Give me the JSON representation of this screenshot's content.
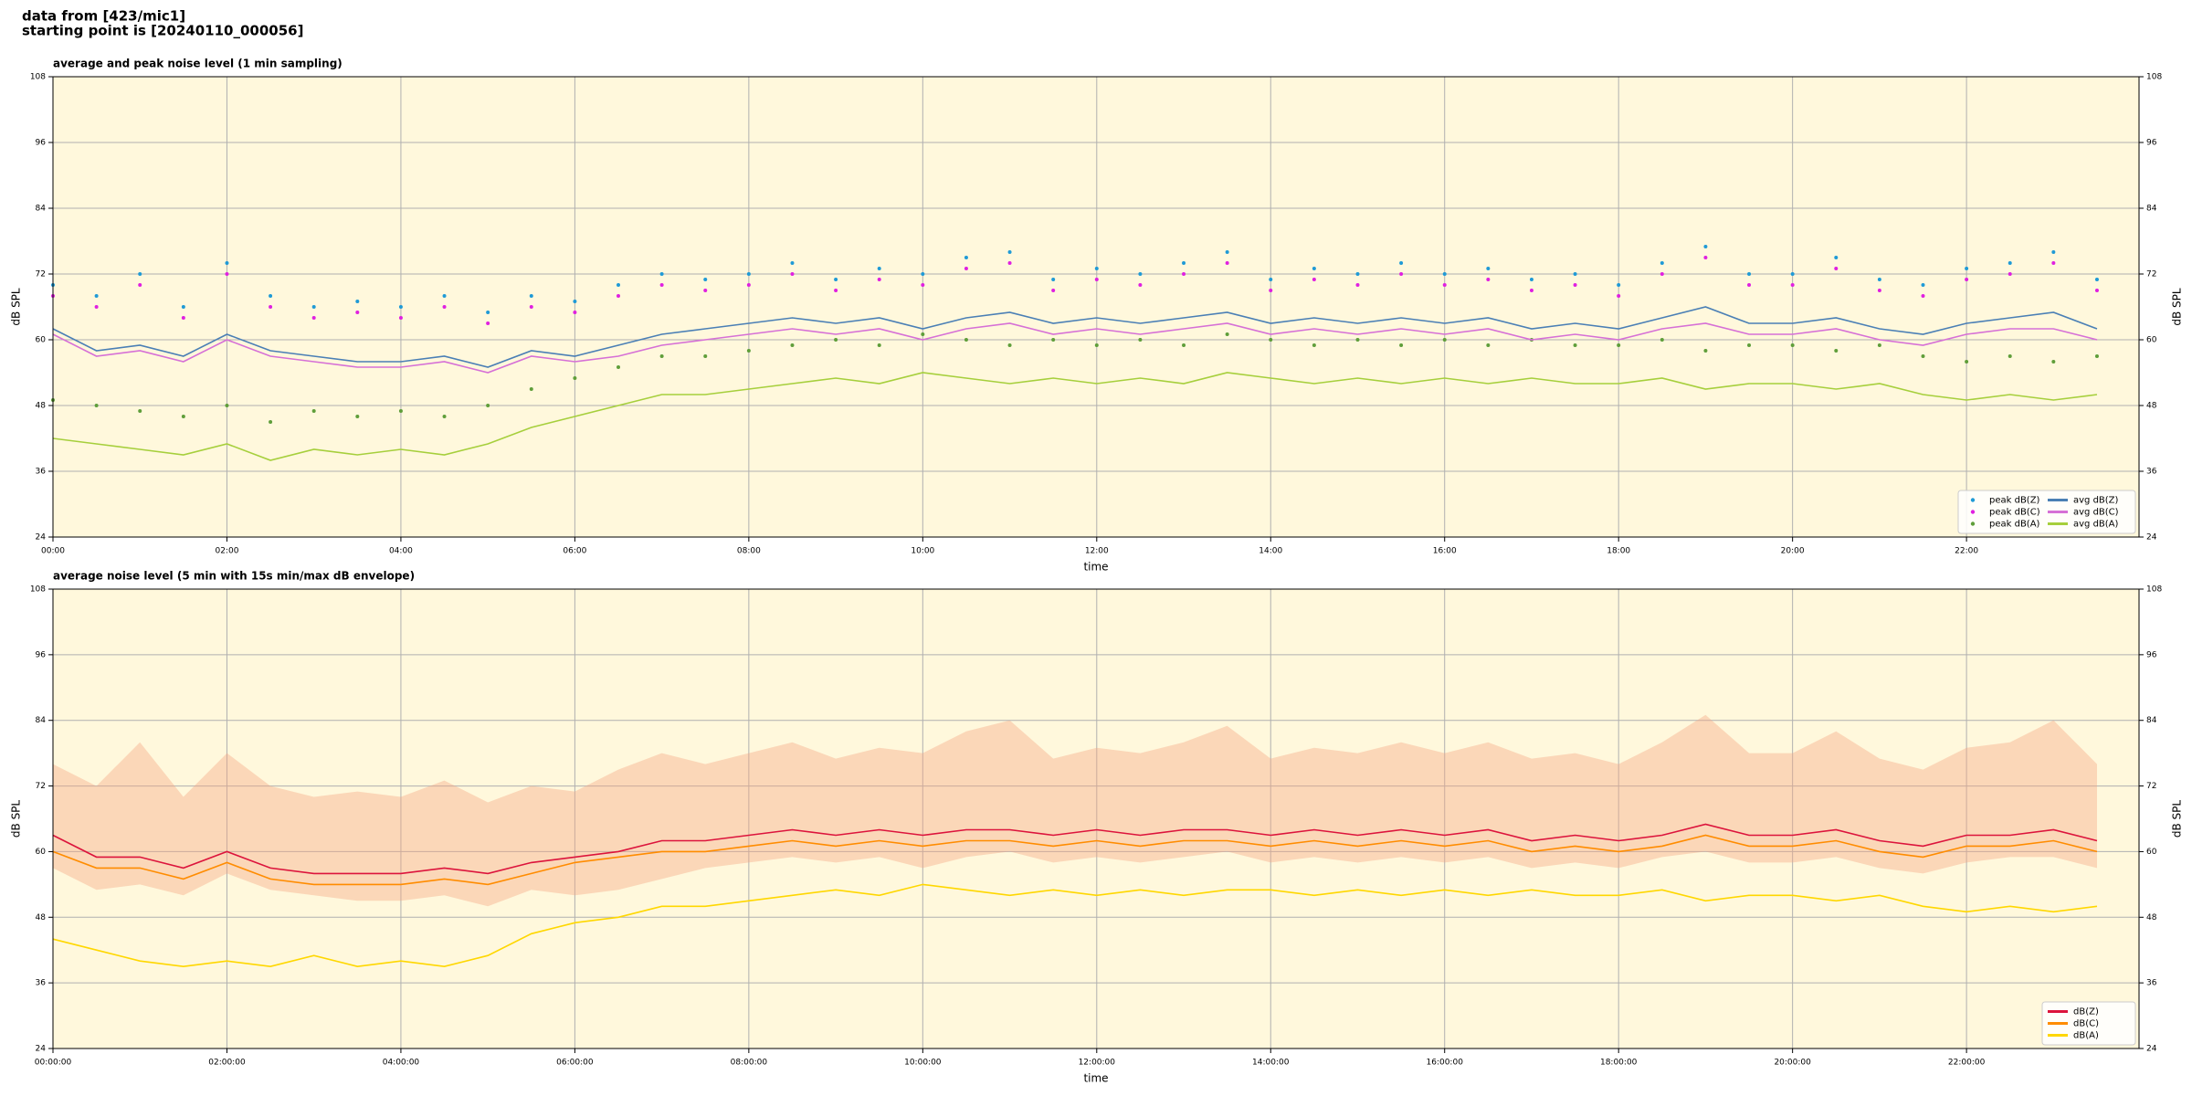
{
  "header": {
    "lines": [
      "data from [423/mic1]",
      "starting point is [20240110_000056]"
    ]
  },
  "chart_data": [
    {
      "type": "line",
      "title": "average and peak noise level (1 min sampling)",
      "xlabel": "time",
      "ylabel": "dB SPL",
      "y2label": "dB SPL",
      "x": [
        "00:00",
        "00:30",
        "01:00",
        "01:30",
        "02:00",
        "02:30",
        "03:00",
        "03:30",
        "04:00",
        "04:30",
        "05:00",
        "05:30",
        "06:00",
        "06:30",
        "07:00",
        "07:30",
        "08:00",
        "08:30",
        "09:00",
        "09:30",
        "10:00",
        "10:30",
        "11:00",
        "11:30",
        "12:00",
        "12:30",
        "13:00",
        "13:30",
        "14:00",
        "14:30",
        "15:00",
        "15:30",
        "16:00",
        "16:30",
        "17:00",
        "17:30",
        "18:00",
        "18:30",
        "19:00",
        "19:30",
        "20:00",
        "20:30",
        "21:00",
        "21:30",
        "22:00",
        "22:30",
        "23:00",
        "23:30"
      ],
      "xlim": [
        "00:00",
        "23:59"
      ],
      "xticks": [
        "00:00",
        "02:00",
        "04:00",
        "06:00",
        "08:00",
        "10:00",
        "12:00",
        "14:00",
        "16:00",
        "18:00",
        "20:00",
        "22:00"
      ],
      "ylim": [
        24,
        108
      ],
      "yticks": [
        24,
        36,
        48,
        60,
        72,
        84,
        96,
        108
      ],
      "grid": true,
      "legend": "lower right",
      "legend_columns": 2,
      "background": "#fff8dc",
      "series": [
        {
          "name": "peak dB(Z)",
          "marker": "dot",
          "color": "#1f9ad6",
          "values": [
            70,
            68,
            72,
            66,
            74,
            68,
            66,
            67,
            66,
            68,
            65,
            68,
            67,
            70,
            72,
            71,
            72,
            74,
            71,
            73,
            72,
            75,
            76,
            71,
            73,
            72,
            74,
            76,
            71,
            73,
            72,
            74,
            72,
            73,
            71,
            72,
            70,
            74,
            77,
            72,
            72,
            75,
            71,
            70,
            73,
            74,
            76,
            71
          ]
        },
        {
          "name": "peak dB(C)",
          "marker": "dot",
          "color": "#e020e0",
          "values": [
            68,
            66,
            70,
            64,
            72,
            66,
            64,
            65,
            64,
            66,
            63,
            66,
            65,
            68,
            70,
            69,
            70,
            72,
            69,
            71,
            70,
            73,
            74,
            69,
            71,
            70,
            72,
            74,
            69,
            71,
            70,
            72,
            70,
            71,
            69,
            70,
            68,
            72,
            75,
            70,
            70,
            73,
            69,
            68,
            71,
            72,
            74,
            69
          ]
        },
        {
          "name": "peak dB(A)",
          "marker": "dot",
          "color": "#5f9e3a",
          "values": [
            49,
            48,
            47,
            46,
            48,
            45,
            47,
            46,
            47,
            46,
            48,
            51,
            53,
            55,
            57,
            57,
            58,
            59,
            60,
            59,
            61,
            60,
            59,
            60,
            59,
            60,
            59,
            61,
            60,
            59,
            60,
            59,
            60,
            59,
            60,
            59,
            59,
            60,
            58,
            59,
            59,
            58,
            59,
            57,
            56,
            57,
            56,
            57
          ]
        },
        {
          "name": "avg dB(Z)",
          "marker": "line",
          "color": "#4a7fb5",
          "values": [
            62,
            58,
            59,
            57,
            61,
            58,
            57,
            56,
            56,
            57,
            55,
            58,
            57,
            59,
            61,
            62,
            63,
            64,
            63,
            64,
            62,
            64,
            65,
            63,
            64,
            63,
            64,
            65,
            63,
            64,
            63,
            64,
            63,
            64,
            62,
            63,
            62,
            64,
            66,
            63,
            63,
            64,
            62,
            61,
            63,
            64,
            65,
            62
          ]
        },
        {
          "name": "avg dB(C)",
          "marker": "line",
          "color": "#d670d6",
          "values": [
            61,
            57,
            58,
            56,
            60,
            57,
            56,
            55,
            55,
            56,
            54,
            57,
            56,
            57,
            59,
            60,
            61,
            62,
            61,
            62,
            60,
            62,
            63,
            61,
            62,
            61,
            62,
            63,
            61,
            62,
            61,
            62,
            61,
            62,
            60,
            61,
            60,
            62,
            63,
            61,
            61,
            62,
            60,
            59,
            61,
            62,
            62,
            60
          ]
        },
        {
          "name": "avg dB(A)",
          "marker": "line",
          "color": "#a6cf3c",
          "values": [
            42,
            41,
            40,
            39,
            41,
            38,
            40,
            39,
            40,
            39,
            41,
            44,
            46,
            48,
            50,
            50,
            51,
            52,
            53,
            52,
            54,
            53,
            52,
            53,
            52,
            53,
            52,
            54,
            53,
            52,
            53,
            52,
            53,
            52,
            53,
            52,
            52,
            53,
            51,
            52,
            52,
            51,
            52,
            50,
            49,
            50,
            49,
            50
          ]
        }
      ]
    },
    {
      "type": "line",
      "title": "average noise level (5 min with 15s min/max dB envelope)",
      "xlabel": "time",
      "ylabel": "dB SPL",
      "y2label": "dB SPL",
      "x": [
        "00:00:00",
        "00:30:00",
        "01:00:00",
        "01:30:00",
        "02:00:00",
        "02:30:00",
        "03:00:00",
        "03:30:00",
        "04:00:00",
        "04:30:00",
        "05:00:00",
        "05:30:00",
        "06:00:00",
        "06:30:00",
        "07:00:00",
        "07:30:00",
        "08:00:00",
        "08:30:00",
        "09:00:00",
        "09:30:00",
        "10:00:00",
        "10:30:00",
        "11:00:00",
        "11:30:00",
        "12:00:00",
        "12:30:00",
        "13:00:00",
        "13:30:00",
        "14:00:00",
        "14:30:00",
        "15:00:00",
        "15:30:00",
        "16:00:00",
        "16:30:00",
        "17:00:00",
        "17:30:00",
        "18:00:00",
        "18:30:00",
        "19:00:00",
        "19:30:00",
        "20:00:00",
        "20:30:00",
        "21:00:00",
        "21:30:00",
        "22:00:00",
        "22:30:00",
        "23:00:00",
        "23:30:00"
      ],
      "xlim": [
        "00:00:00",
        "23:59:00"
      ],
      "xticks": [
        "00:00:00",
        "02:00:00",
        "04:00:00",
        "06:00:00",
        "08:00:00",
        "10:00:00",
        "12:00:00",
        "14:00:00",
        "16:00:00",
        "18:00:00",
        "20:00:00",
        "22:00:00"
      ],
      "ylim": [
        24,
        108
      ],
      "yticks": [
        24,
        36,
        48,
        60,
        72,
        84,
        96,
        108
      ],
      "grid": true,
      "legend": "lower right",
      "legend_columns": 1,
      "background": "#fff8dc",
      "envelope": {
        "color": "#f4a582",
        "lower": [
          57,
          53,
          54,
          52,
          56,
          53,
          52,
          51,
          51,
          52,
          50,
          53,
          52,
          53,
          55,
          57,
          58,
          59,
          58,
          59,
          57,
          59,
          60,
          58,
          59,
          58,
          59,
          60,
          58,
          59,
          58,
          59,
          58,
          59,
          57,
          58,
          57,
          59,
          60,
          58,
          58,
          59,
          57,
          56,
          58,
          59,
          59,
          57
        ],
        "upper": [
          76,
          72,
          80,
          70,
          78,
          72,
          70,
          71,
          70,
          73,
          69,
          72,
          71,
          75,
          78,
          76,
          78,
          80,
          77,
          79,
          78,
          82,
          84,
          77,
          79,
          78,
          80,
          83,
          77,
          79,
          78,
          80,
          78,
          80,
          77,
          78,
          76,
          80,
          85,
          78,
          78,
          82,
          77,
          75,
          79,
          80,
          84,
          76
        ]
      },
      "series": [
        {
          "name": "dB(Z)",
          "marker": "line",
          "color": "#dc143c",
          "values": [
            63,
            59,
            59,
            57,
            60,
            57,
            56,
            56,
            56,
            57,
            56,
            58,
            59,
            60,
            62,
            62,
            63,
            64,
            63,
            64,
            63,
            64,
            64,
            63,
            64,
            63,
            64,
            64,
            63,
            64,
            63,
            64,
            63,
            64,
            62,
            63,
            62,
            63,
            65,
            63,
            63,
            64,
            62,
            61,
            63,
            63,
            64,
            62
          ]
        },
        {
          "name": "dB(C)",
          "marker": "line",
          "color": "#ff8c00",
          "values": [
            60,
            57,
            57,
            55,
            58,
            55,
            54,
            54,
            54,
            55,
            54,
            56,
            58,
            59,
            60,
            60,
            61,
            62,
            61,
            62,
            61,
            62,
            62,
            61,
            62,
            61,
            62,
            62,
            61,
            62,
            61,
            62,
            61,
            62,
            60,
            61,
            60,
            61,
            63,
            61,
            61,
            62,
            60,
            59,
            61,
            61,
            62,
            60
          ]
        },
        {
          "name": "dB(A)",
          "marker": "line",
          "color": "#ffd700",
          "values": [
            44,
            42,
            40,
            39,
            40,
            39,
            41,
            39,
            40,
            39,
            41,
            45,
            47,
            48,
            50,
            50,
            51,
            52,
            53,
            52,
            54,
            53,
            52,
            53,
            52,
            53,
            52,
            53,
            53,
            52,
            53,
            52,
            53,
            52,
            53,
            52,
            52,
            53,
            51,
            52,
            52,
            51,
            52,
            50,
            49,
            50,
            49,
            50
          ]
        }
      ]
    }
  ]
}
